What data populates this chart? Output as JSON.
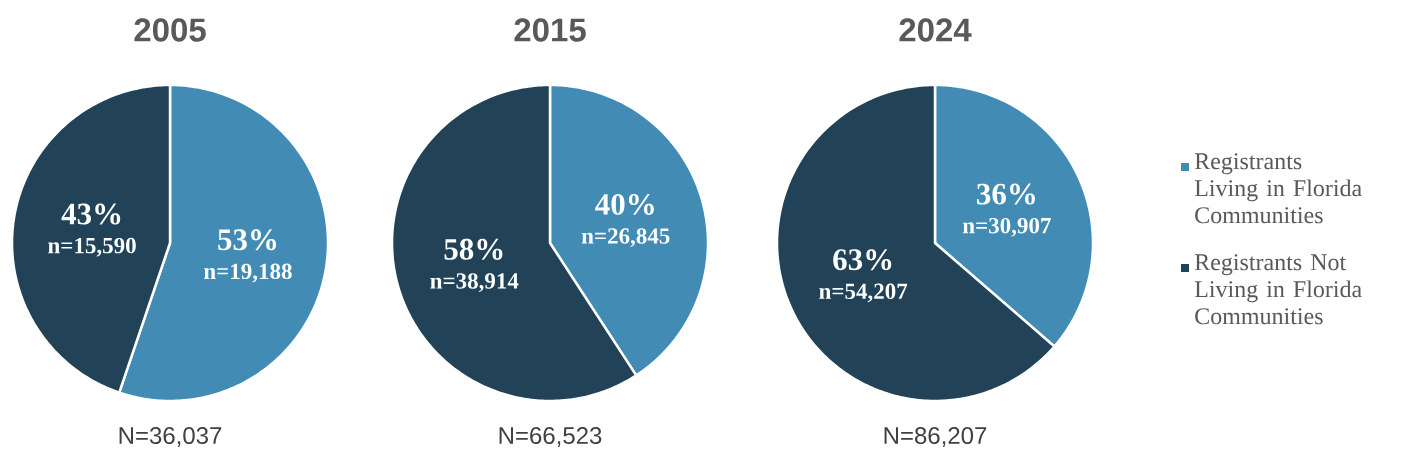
{
  "chart_data": [
    {
      "type": "pie",
      "title": "2005",
      "categories": [
        null,
        null
      ],
      "values": [
        53,
        43
      ],
      "colors": [
        "#428bb5",
        "#214257"
      ],
      "value_labels": [
        "53%",
        "43%"
      ],
      "annotations": [
        "n=19,188",
        "n=15,590",
        "N=36,037"
      ]
    },
    {
      "type": "pie",
      "title": "2015",
      "categories": [
        null,
        null
      ],
      "values": [
        40,
        58
      ],
      "colors": [
        "#428bb5",
        "#214257"
      ],
      "value_labels": [
        "40%",
        "58%"
      ],
      "annotations": [
        "n=26,845",
        "n=38,914",
        "N=66,523"
      ]
    },
    {
      "type": "pie",
      "title": "2024",
      "categories": [
        "Registrants Living in Florida Communities",
        "Registrants Not Living in Florida Communities"
      ],
      "values": [
        36,
        63
      ],
      "colors": [
        "#428bb5",
        "#214257"
      ],
      "value_labels": [
        "36%",
        "63%"
      ],
      "annotations": [
        "n=30,907",
        "n=54,207",
        "N=86,207"
      ],
      "legend": "right"
    }
  ]
}
